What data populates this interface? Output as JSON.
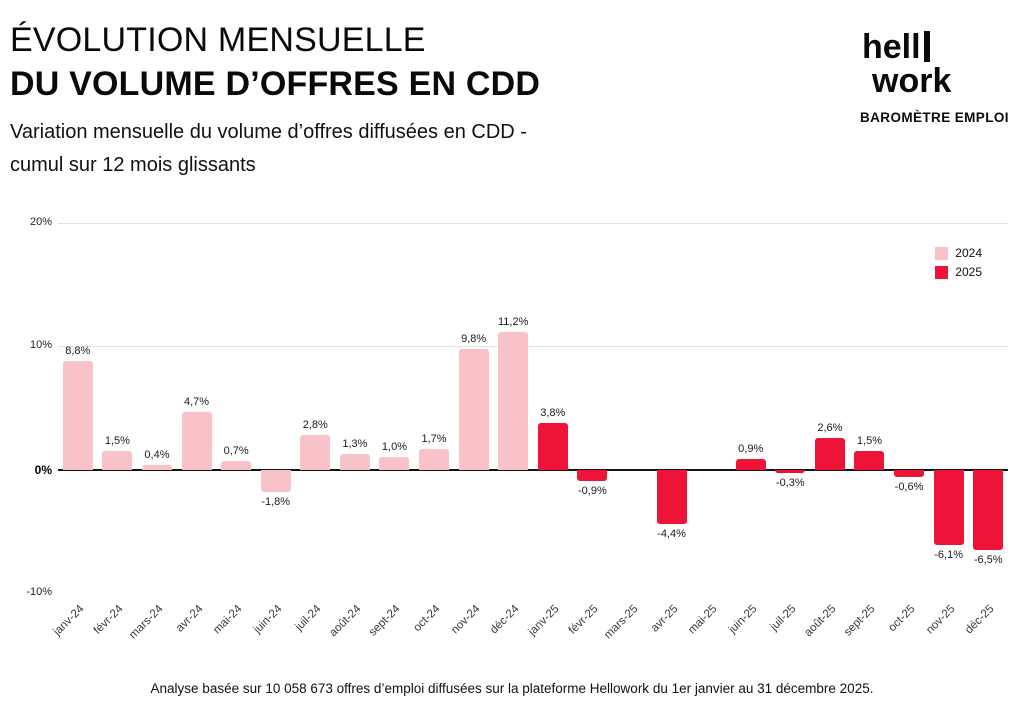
{
  "header": {
    "title1": "ÉVOLUTION MENSUELLE",
    "title2": "DU VOLUME D’OFFRES EN CDD",
    "subtitle1": "Variation mensuelle du volume d’offres diffusées en CDD -",
    "subtitle2": "cumul sur 12 mois glissants"
  },
  "logo": {
    "word1": "hell",
    "word2": "work",
    "tagline": "BAROMÈTRE EMPLOI"
  },
  "legend": [
    {
      "label": "2024",
      "color": "#f7c3c9"
    },
    {
      "label": "2025",
      "color": "#ee1438"
    }
  ],
  "chart_data": {
    "type": "bar",
    "title": "Évolution mensuelle du volume d’offres en CDD",
    "xlabel": "",
    "ylabel": "",
    "ylim": [
      -10,
      20
    ],
    "grid": true,
    "legend_position": "top-right",
    "categories": [
      "janv-24",
      "févr-24",
      "mars-24",
      "avr-24",
      "mai-24",
      "juin-24",
      "juil-24",
      "août-24",
      "sept-24",
      "oct-24",
      "nov-24",
      "déc-24",
      "janv-25",
      "févr-25",
      "mars-25",
      "avr-25",
      "mai-25",
      "juin-25",
      "juil-25",
      "août-25",
      "sept-25",
      "oct-25",
      "nov-25",
      "déc-25"
    ],
    "values": [
      8.8,
      1.5,
      0.4,
      4.7,
      0.7,
      -1.8,
      2.8,
      1.3,
      1.0,
      1.7,
      9.8,
      11.2,
      3.8,
      -0.9,
      null,
      -4.4,
      null,
      0.9,
      -0.3,
      2.6,
      1.5,
      -0.6,
      -6.1,
      -6.5
    ],
    "labels": [
      "8,8%",
      "1,5%",
      "0,4%",
      "4,7%",
      "0,7%",
      "-1,8%",
      "2,8%",
      "1,3%",
      "1,0%",
      "1,7%",
      "9,8%",
      "11,2%",
      "3,8%",
      "-0,9%",
      "",
      "-4,4%",
      "",
      "0,9%",
      "-0,3%",
      "2,6%",
      "1,5%",
      "-0,6%",
      "-6,1%",
      "-6,5%"
    ],
    "point_series": [
      0,
      0,
      0,
      0,
      0,
      0,
      0,
      0,
      0,
      0,
      0,
      0,
      1,
      1,
      1,
      1,
      1,
      1,
      1,
      1,
      1,
      1,
      1,
      1
    ],
    "yticks": [
      {
        "value": 20,
        "label": "20%",
        "line": "light",
        "bold": false
      },
      {
        "value": 10,
        "label": "10%",
        "line": "light",
        "bold": false
      },
      {
        "value": 0,
        "label": "0%",
        "line": "axis",
        "bold": true
      },
      {
        "value": -10,
        "label": "-10%",
        "line": "none",
        "bold": false
      }
    ]
  },
  "footer": {
    "text": "Analyse basée sur 10 058 673 offres d’emploi diffusées sur la plateforme Hellowork du 1er janvier au 31 décembre 2025."
  }
}
